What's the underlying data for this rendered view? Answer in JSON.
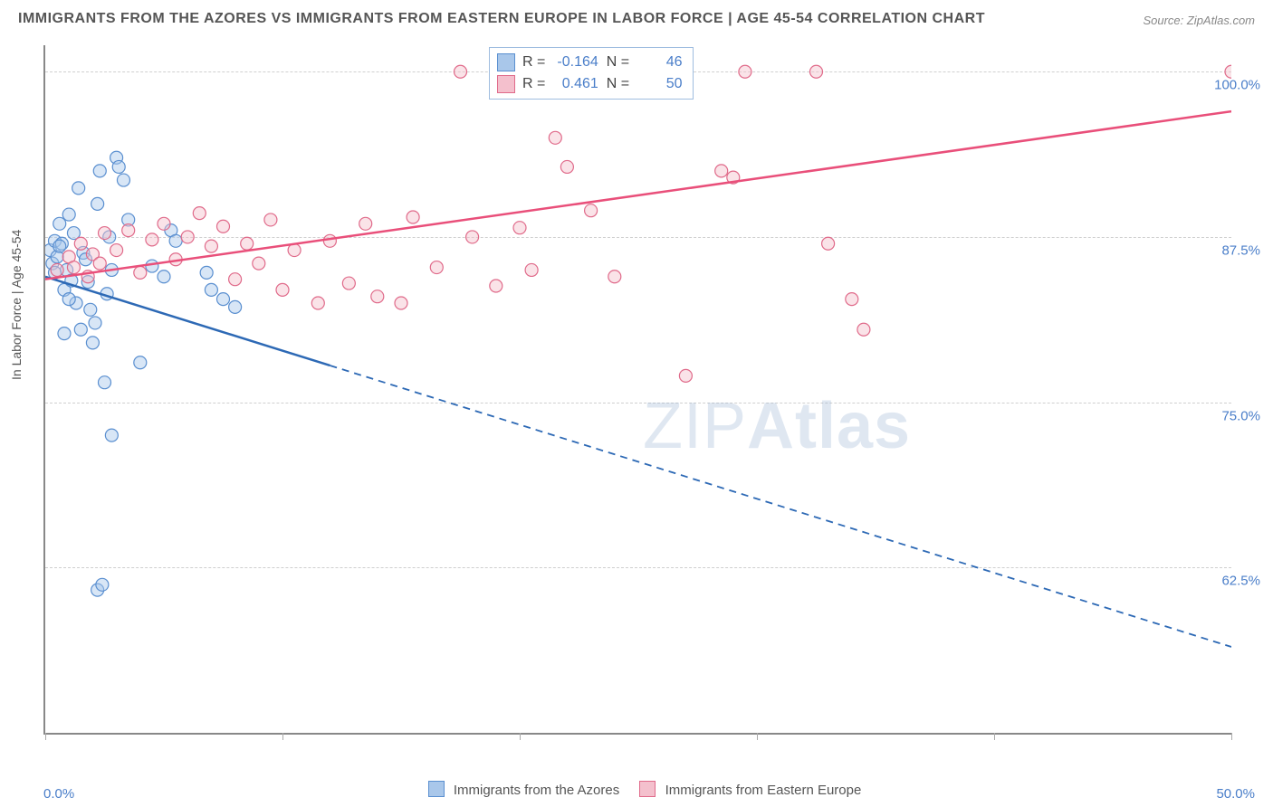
{
  "title": "IMMIGRANTS FROM THE AZORES VS IMMIGRANTS FROM EASTERN EUROPE IN LABOR FORCE | AGE 45-54 CORRELATION CHART",
  "source": "Source: ZipAtlas.com",
  "watermark_thin": "ZIP",
  "watermark_bold": "Atlas",
  "chart": {
    "type": "scatter",
    "y_axis_title": "In Labor Force | Age 45-54",
    "xlim": [
      0,
      50
    ],
    "ylim": [
      50,
      102
    ],
    "x_ticks": [
      0,
      10,
      20,
      30,
      40,
      50
    ],
    "x_tick_labels": {
      "0": "0.0%",
      "50": "50.0%"
    },
    "y_gridlines": [
      62.5,
      75,
      87.5,
      100
    ],
    "y_labels": {
      "62.5": "62.5%",
      "75": "75.0%",
      "87.5": "87.5%",
      "100": "100.0%"
    },
    "background_color": "#ffffff",
    "grid_color": "#cfcfcf",
    "axis_color": "#888888",
    "label_color": "#4a7ec9",
    "marker_radius": 7,
    "marker_opacity": 0.45,
    "series": [
      {
        "name": "Immigrants from the Azores",
        "legend_label": "Immigrants from the Azores",
        "fill": "#a9c7ea",
        "stroke": "#5a8fd0",
        "trend_color": "#2d69b5",
        "R": "-0.164",
        "N": "46",
        "trend": {
          "x1": 0,
          "y1": 84.5,
          "x2": 50,
          "y2": 56.5,
          "dash_after_x": 12
        },
        "points": [
          [
            0.2,
            86.5
          ],
          [
            0.3,
            85.5
          ],
          [
            0.4,
            87.2
          ],
          [
            0.5,
            86.0
          ],
          [
            0.6,
            88.5
          ],
          [
            0.7,
            87.0
          ],
          [
            0.8,
            83.5
          ],
          [
            0.9,
            85.0
          ],
          [
            1.0,
            89.2
          ],
          [
            1.1,
            84.2
          ],
          [
            1.2,
            87.8
          ],
          [
            1.3,
            82.5
          ],
          [
            1.4,
            91.2
          ],
          [
            1.5,
            80.5
          ],
          [
            1.6,
            86.3
          ],
          [
            1.7,
            85.8
          ],
          [
            1.8,
            84.1
          ],
          [
            1.9,
            82.0
          ],
          [
            2.0,
            79.5
          ],
          [
            2.1,
            81.0
          ],
          [
            2.2,
            90.0
          ],
          [
            2.3,
            92.5
          ],
          [
            2.5,
            76.5
          ],
          [
            2.6,
            83.2
          ],
          [
            2.7,
            87.5
          ],
          [
            2.8,
            85.0
          ],
          [
            3.0,
            93.5
          ],
          [
            3.1,
            92.8
          ],
          [
            3.3,
            91.8
          ],
          [
            3.5,
            88.8
          ],
          [
            1.0,
            82.8
          ],
          [
            0.8,
            80.2
          ],
          [
            0.6,
            86.8
          ],
          [
            0.4,
            84.8
          ],
          [
            2.2,
            60.8
          ],
          [
            2.4,
            61.2
          ],
          [
            2.8,
            72.5
          ],
          [
            4.0,
            78.0
          ],
          [
            4.5,
            85.3
          ],
          [
            5.0,
            84.5
          ],
          [
            5.3,
            88.0
          ],
          [
            5.5,
            87.2
          ],
          [
            7.0,
            83.5
          ],
          [
            7.5,
            82.8
          ],
          [
            8.0,
            82.2
          ],
          [
            6.8,
            84.8
          ]
        ]
      },
      {
        "name": "Immigrants from Eastern Europe",
        "legend_label": "Immigrants from Eastern Europe",
        "fill": "#f4c0cd",
        "stroke": "#e06a8a",
        "trend_color": "#e94f7a",
        "R": "0.461",
        "N": "50",
        "trend": {
          "x1": 0,
          "y1": 84.3,
          "x2": 50,
          "y2": 97.0,
          "dash_after_x": 50
        },
        "points": [
          [
            0.5,
            85.0
          ],
          [
            1.0,
            86.0
          ],
          [
            1.2,
            85.2
          ],
          [
            1.5,
            87.0
          ],
          [
            1.8,
            84.5
          ],
          [
            2.0,
            86.2
          ],
          [
            2.3,
            85.5
          ],
          [
            2.5,
            87.8
          ],
          [
            3.0,
            86.5
          ],
          [
            3.5,
            88.0
          ],
          [
            4.0,
            84.8
          ],
          [
            4.5,
            87.3
          ],
          [
            5.0,
            88.5
          ],
          [
            5.5,
            85.8
          ],
          [
            6.0,
            87.5
          ],
          [
            6.5,
            89.3
          ],
          [
            7.0,
            86.8
          ],
          [
            7.5,
            88.3
          ],
          [
            8.0,
            84.3
          ],
          [
            8.5,
            87.0
          ],
          [
            9.0,
            85.5
          ],
          [
            9.5,
            88.8
          ],
          [
            10.0,
            83.5
          ],
          [
            10.5,
            86.5
          ],
          [
            11.5,
            82.5
          ],
          [
            12.0,
            87.2
          ],
          [
            12.8,
            84.0
          ],
          [
            13.5,
            88.5
          ],
          [
            14.0,
            83.0
          ],
          [
            15.0,
            82.5
          ],
          [
            15.5,
            89.0
          ],
          [
            16.5,
            85.2
          ],
          [
            17.5,
            100.0
          ],
          [
            18.0,
            87.5
          ],
          [
            19.0,
            83.8
          ],
          [
            20.0,
            88.2
          ],
          [
            20.5,
            85.0
          ],
          [
            21.5,
            95.0
          ],
          [
            22.0,
            92.8
          ],
          [
            23.0,
            89.5
          ],
          [
            24.0,
            84.5
          ],
          [
            27.0,
            77.0
          ],
          [
            28.5,
            92.5
          ],
          [
            29.0,
            92.0
          ],
          [
            29.5,
            100.0
          ],
          [
            32.5,
            100.0
          ],
          [
            33.0,
            87.0
          ],
          [
            34.0,
            82.8
          ],
          [
            34.5,
            80.5
          ],
          [
            50.0,
            100.0
          ]
        ]
      }
    ]
  },
  "x_legend": {
    "items": [
      {
        "label": "Immigrants from the Azores",
        "fill": "#a9c7ea",
        "stroke": "#5a8fd0"
      },
      {
        "label": "Immigrants from Eastern Europe",
        "fill": "#f4c0cd",
        "stroke": "#e06a8a"
      }
    ]
  }
}
